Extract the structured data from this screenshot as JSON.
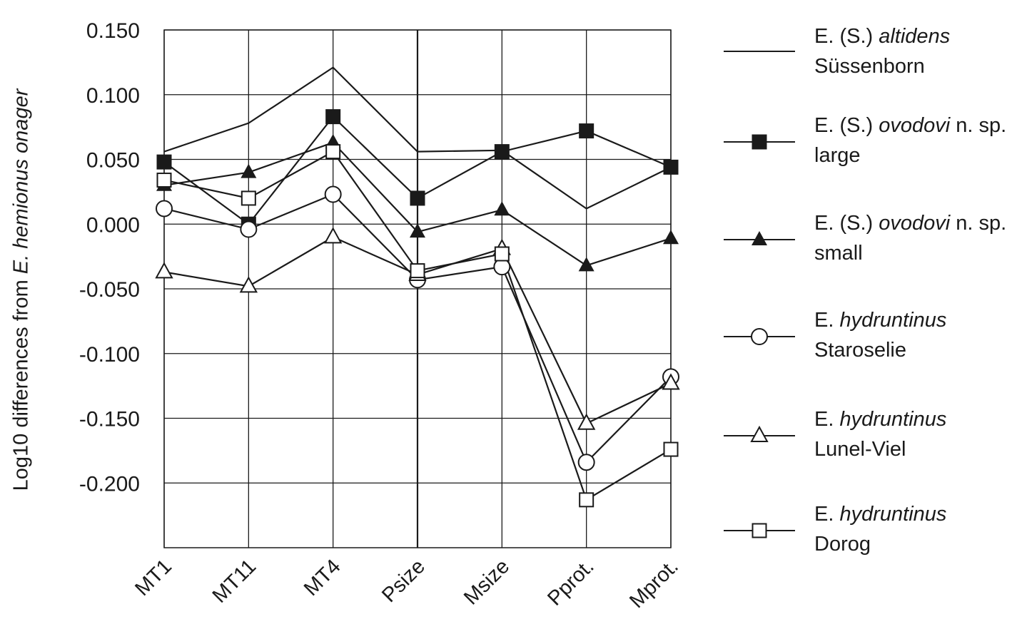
{
  "chart_data": {
    "type": "line",
    "title": "",
    "xlabel": "",
    "ylabel": "Log10 differences from E. hemionus onager",
    "ylabel_parts": {
      "prefix": "Log10 differences from ",
      "italic": "E. hemionus onager"
    },
    "categories": [
      "MT1",
      "MT11",
      "MT4",
      "Psize",
      "Msize",
      "Pprot.",
      "Mprot."
    ],
    "ylim": [
      -0.25,
      0.15
    ],
    "yticks": [
      0.15,
      0.1,
      0.05,
      0.0,
      -0.05,
      -0.1,
      -0.15,
      -0.2
    ],
    "ytick_labels": [
      "0.150",
      "0.100",
      "0.050",
      "0.000",
      "-0.050",
      "-0.100",
      "-0.150",
      "-0.200"
    ],
    "grid": true,
    "legend_position": "right",
    "series": [
      {
        "name": "E. (S.) altidens Süssenborn",
        "italic": "altidens",
        "line1_pre": "E. (S.) ",
        "line1_post": "",
        "line2": "Süssenborn",
        "marker": "none",
        "values": [
          0.056,
          0.078,
          0.121,
          0.056,
          0.057,
          0.012,
          0.044
        ]
      },
      {
        "name": "E. (S.) ovodovi n. sp. large",
        "italic": "ovodovi",
        "line1_pre": "E. (S.) ",
        "line1_post": " n. sp.",
        "line2": "large",
        "marker": "filled-square",
        "values": [
          0.048,
          0.0,
          0.083,
          0.02,
          0.056,
          0.072,
          0.044
        ]
      },
      {
        "name": "E. (S.) ovodovi n. sp. small",
        "italic": "ovodovi",
        "line1_pre": "E. (S.) ",
        "line1_post": " n. sp.",
        "line2": "small",
        "marker": "filled-triangle",
        "values": [
          0.03,
          0.04,
          0.063,
          -0.006,
          0.011,
          -0.032,
          -0.011
        ]
      },
      {
        "name": "E. hydruntinus Staroselie",
        "italic": "hydruntinus",
        "line1_pre": "E. ",
        "line1_post": "",
        "line2": "Staroselie",
        "marker": "open-circle",
        "values": [
          0.012,
          -0.004,
          0.023,
          -0.043,
          -0.033,
          -0.184,
          -0.118
        ]
      },
      {
        "name": "E. hydruntinus Lunel-Viel",
        "italic": "hydruntinus",
        "line1_pre": "E. ",
        "line1_post": "",
        "line2": "Lunel-Viel",
        "marker": "open-triangle",
        "values": [
          -0.037,
          -0.048,
          -0.01,
          -0.039,
          -0.019,
          -0.154,
          -0.123
        ]
      },
      {
        "name": "E. hydruntinus Dorog",
        "italic": "hydruntinus",
        "line1_pre": "E. ",
        "line1_post": "",
        "line2": "Dorog",
        "marker": "open-square",
        "values": [
          0.034,
          0.02,
          0.056,
          -0.036,
          -0.023,
          -0.213,
          -0.174
        ]
      }
    ],
    "colors": {
      "line": "#1a1a1a",
      "grid": "#1a1a1a",
      "background": "#ffffff"
    }
  }
}
